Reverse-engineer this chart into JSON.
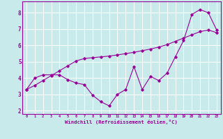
{
  "xlabel": "Windchill (Refroidissement éolien,°C)",
  "background_color": "#c8eaea",
  "grid_color": "#ffffff",
  "line_color": "#990099",
  "xlim": [
    -0.5,
    23.5
  ],
  "ylim": [
    1.8,
    8.7
  ],
  "xticks": [
    0,
    1,
    2,
    3,
    4,
    5,
    6,
    7,
    8,
    9,
    10,
    11,
    12,
    13,
    14,
    15,
    16,
    17,
    18,
    19,
    20,
    21,
    22,
    23
  ],
  "yticks": [
    2,
    3,
    4,
    5,
    6,
    7,
    8
  ],
  "series1_x": [
    0,
    1,
    2,
    3,
    4,
    5,
    6,
    7,
    8,
    9,
    10,
    11,
    12,
    13,
    14,
    15,
    16,
    17,
    18,
    19,
    20,
    21,
    22,
    23
  ],
  "series1_y": [
    3.3,
    4.0,
    4.2,
    4.2,
    4.2,
    3.9,
    3.7,
    3.6,
    2.95,
    2.55,
    2.3,
    3.0,
    3.3,
    4.7,
    3.3,
    4.1,
    3.85,
    4.3,
    5.3,
    6.3,
    7.9,
    8.2,
    8.0,
    6.95
  ],
  "series2_x": [
    0,
    1,
    2,
    3,
    4,
    5,
    6,
    7,
    8,
    9,
    10,
    11,
    12,
    13,
    14,
    15,
    16,
    17,
    18,
    19,
    20,
    21,
    22,
    23
  ],
  "series2_y": [
    3.3,
    3.55,
    3.85,
    4.15,
    4.45,
    4.75,
    5.05,
    5.2,
    5.25,
    5.3,
    5.35,
    5.42,
    5.5,
    5.58,
    5.68,
    5.78,
    5.9,
    6.05,
    6.25,
    6.45,
    6.65,
    6.85,
    6.95,
    6.78
  ]
}
